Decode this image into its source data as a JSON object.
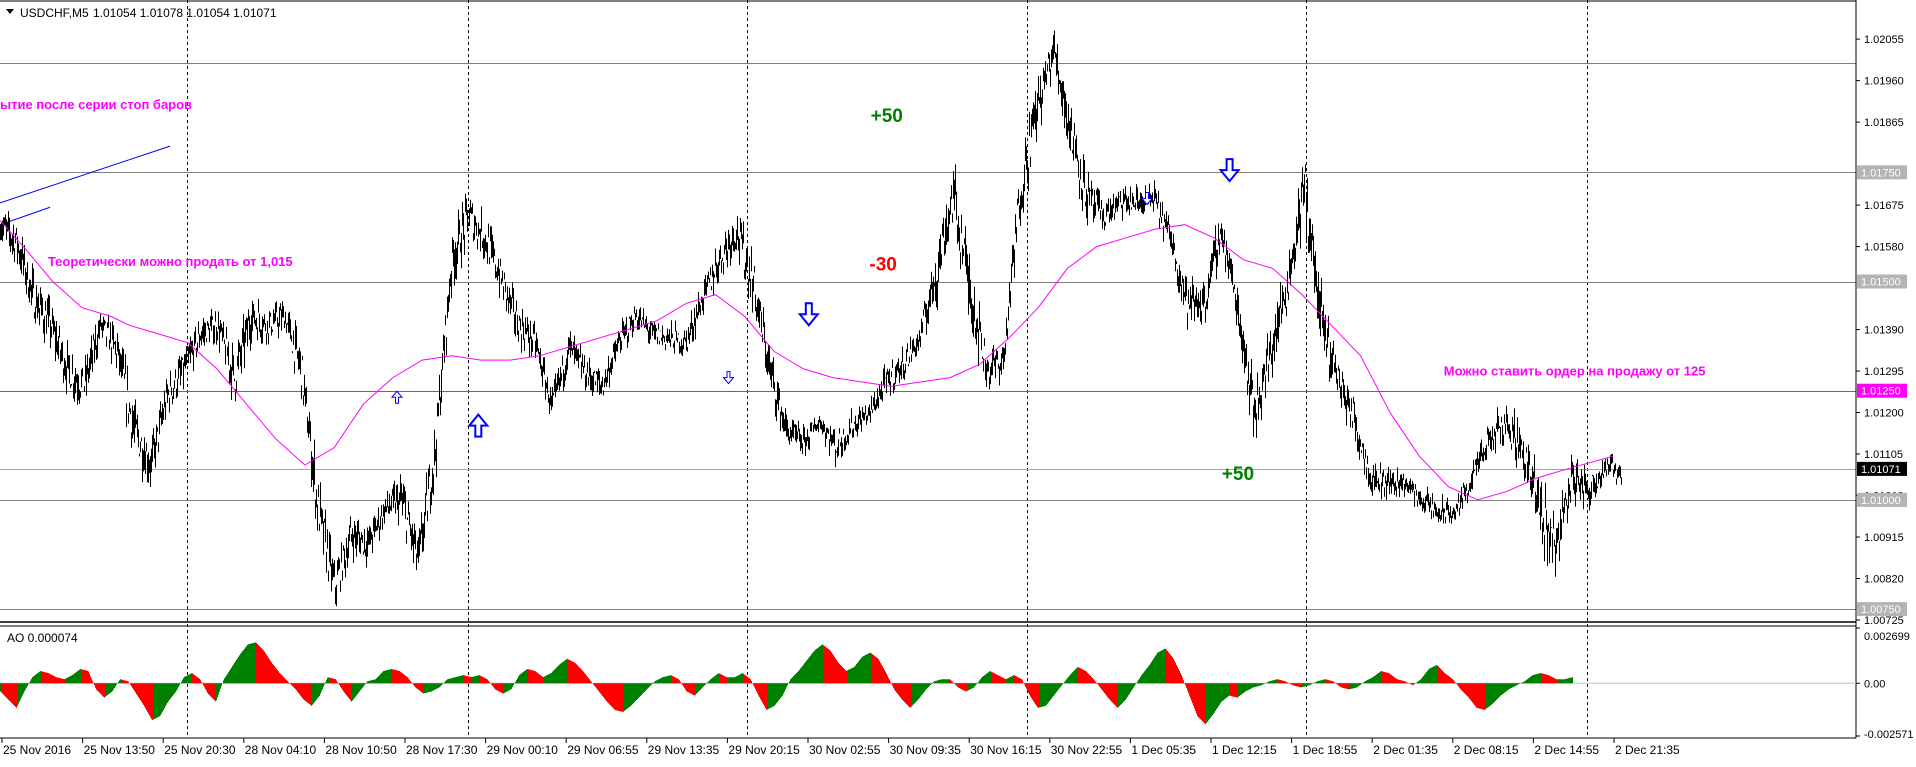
{
  "header": {
    "symbol": "USDCHF,M5",
    "ohlc": "1.01054 1.01078 1.01054 1.01071"
  },
  "chart_data": [
    {
      "type": "line",
      "title": "USDCHF,M5",
      "ylim": [
        1.00725,
        1.0214
      ],
      "grid": true,
      "yticks": [
        "1.02055",
        "1.01960",
        "1.01865",
        "1.01750",
        "1.01675",
        "1.01580",
        "1.01500",
        "1.01390",
        "1.01295",
        "1.01250",
        "1.01200",
        "1.01105",
        "1.01071",
        "1.01010",
        "1.01000",
        "1.00915",
        "1.00820",
        "1.00750",
        "1.00725"
      ],
      "price_line_ticks": [
        "1.01960",
        "1.01865",
        "1.01675",
        "1.01580",
        "1.01390",
        "1.01295",
        "1.01200",
        "1.01105",
        "1.01010",
        "1.00915",
        "1.00820",
        "1.00725"
      ],
      "boxed_levels": [
        "1.02000",
        "1.01750",
        "1.01500",
        "1.01250",
        "1.01000",
        "1.00750"
      ],
      "current_price": "1.01071",
      "xticks": [
        "25 Nov 2016",
        "25 Nov 13:50",
        "25 Nov 20:30",
        "28 Nov 04:10",
        "28 Nov 10:50",
        "28 Nov 17:30",
        "29 Nov 00:10",
        "29 Nov 06:55",
        "29 Nov 13:35",
        "29 Nov 20:15",
        "30 Nov 02:55",
        "30 Nov 09:35",
        "30 Nov 16:15",
        "30 Nov 22:55",
        "1 Dec 05:35",
        "1 Dec 12:15",
        "1 Dec 18:55",
        "2 Dec 01:35",
        "2 Dec 08:15",
        "2 Dec 14:55",
        "2 Dec 21:35"
      ],
      "series": [
        {
          "values": [
            1.0163,
            1.0159,
            1.0146,
            1.014,
            1.013,
            1.0126,
            1.014,
            1.0134,
            1.0116,
            1.0108,
            1.0124,
            1.013,
            1.0138,
            1.014,
            1.0128,
            1.0142,
            1.014,
            1.0142,
            1.013,
            1.0098,
            1.008,
            1.0092,
            1.009,
            1.0098,
            1.01,
            1.0086,
            1.0111,
            1.0155,
            1.0165,
            1.016,
            1.015,
            1.014,
            1.0136,
            1.0121,
            1.0135,
            1.0129,
            1.0126,
            1.0136,
            1.0142,
            1.0138,
            1.0137,
            1.0136,
            1.0146,
            1.0155,
            1.0162,
            1.015,
            1.013,
            1.0116,
            1.0113,
            1.0118,
            1.0112,
            1.0117,
            1.012,
            1.0127,
            1.0131,
            1.0137,
            1.0153,
            1.017,
            1.0148,
            1.013,
            1.0132,
            1.0171,
            1.019,
            1.0203,
            1.0185,
            1.0169,
            1.0165,
            1.0168,
            1.0168,
            1.0169,
            1.016,
            1.0145,
            1.0145,
            1.0162,
            1.0144,
            1.012,
            1.0134,
            1.015,
            1.0172,
            1.014,
            1.0128,
            1.0118,
            1.0105,
            1.0104,
            1.0104,
            1.01,
            1.0097,
            1.0097,
            1.0105,
            1.0113,
            1.0118,
            1.0112,
            1.0098,
            1.009,
            1.0105,
            1.0102,
            1.0108,
            1.0106
          ],
          "band": [
            0.0006,
            0.0008,
            0.0009,
            0.0008,
            0.0008,
            0.0008,
            0.0006,
            0.0008,
            0.001,
            0.0008,
            0.0007,
            0.0007,
            0.0006,
            0.0006,
            0.001,
            0.0008,
            0.0006,
            0.0006,
            0.0009,
            0.0012,
            0.0008,
            0.0007,
            0.0007,
            0.0006,
            0.0008,
            0.001,
            0.001,
            0.001,
            0.0008,
            0.0008,
            0.0007,
            0.0007,
            0.0006,
            0.0006,
            0.0007,
            0.0006,
            0.0006,
            0.0005,
            0.0005,
            0.0005,
            0.0005,
            0.0005,
            0.0006,
            0.0007,
            0.0008,
            0.001,
            0.0008,
            0.0006,
            0.0005,
            0.0004,
            0.0006,
            0.0005,
            0.0004,
            0.0006,
            0.0005,
            0.0005,
            0.0012,
            0.001,
            0.0012,
            0.0007,
            0.0006,
            0.0012,
            0.001,
            0.0008,
            0.0012,
            0.0008,
            0.0006,
            0.0005,
            0.0005,
            0.0005,
            0.0006,
            0.0008,
            0.0008,
            0.0008,
            0.0009,
            0.001,
            0.0009,
            0.001,
            0.0012,
            0.0012,
            0.0008,
            0.0008,
            0.0006,
            0.0005,
            0.0004,
            0.0004,
            0.0005,
            0.0004,
            0.0005,
            0.0006,
            0.0006,
            0.0008,
            0.0012,
            0.001,
            0.0008,
            0.0006,
            0.0005,
            0.0004
          ]
        },
        {
          "values": [
            1.0164,
            1.0158,
            1.015,
            1.0144,
            1.0142,
            1.014,
            1.0138,
            1.0136,
            1.013,
            1.0122,
            1.0114,
            1.0108,
            1.0112,
            1.0122,
            1.0128,
            1.0132,
            1.0133,
            1.0132,
            1.0132,
            1.0133,
            1.0135,
            1.0137,
            1.0139,
            1.0141,
            1.0145,
            1.0147,
            1.0142,
            1.0134,
            1.013,
            1.0128,
            1.0127,
            1.0126,
            1.0127,
            1.0128,
            1.0131,
            1.0137,
            1.0144,
            1.0153,
            1.0158,
            1.016,
            1.0162,
            1.0163,
            1.016,
            1.0155,
            1.0153,
            1.0147,
            1.014,
            1.0133,
            1.012,
            1.011,
            1.0103,
            1.01,
            1.0102,
            1.0105,
            1.0107,
            1.011
          ],
          "x_frac": [
            0.0,
            0.0126,
            0.0284,
            0.0442,
            0.06,
            0.0695,
            0.0853,
            0.1011,
            0.1169,
            0.1327,
            0.1485,
            0.1643,
            0.1801,
            0.1959,
            0.2117,
            0.2275,
            0.2433,
            0.2591,
            0.2749,
            0.2907,
            0.3065,
            0.3223,
            0.3381,
            0.3539,
            0.3697,
            0.3855,
            0.4013,
            0.4171,
            0.4329,
            0.4487,
            0.4645,
            0.4803,
            0.4961,
            0.5119,
            0.5277,
            0.5435,
            0.5593,
            0.5751,
            0.5909,
            0.6067,
            0.6225,
            0.6383,
            0.6541,
            0.6699,
            0.6857,
            0.7015,
            0.7173,
            0.7331,
            0.7489,
            0.7647,
            0.7805,
            0.7963,
            0.8121,
            0.8279,
            0.8437,
            0.869
          ]
        }
      ],
      "trendline": [
        [
          0.0,
          1.0168
        ],
        [
          0.0916,
          1.0181
        ]
      ],
      "annotations": [
        {
          "text": "ытие после серии стоп баров",
          "x": 0.0,
          "y": 1.01895,
          "color": "#ff00ff"
        },
        {
          "text": "Теоретически можно продать от 1,015",
          "x": 0.0258,
          "y": 1.01535,
          "color": "#ff00ff"
        },
        {
          "text": "Можно ставить ордер на продажу от 125",
          "x": 0.7779,
          "y": 1.01285,
          "color": "#ff00ff"
        },
        {
          "text": "+50",
          "x": 0.4691,
          "y": 1.01865,
          "color": "#007f00",
          "size": "big"
        },
        {
          "text": "-30",
          "x": 0.4684,
          "y": 1.01525,
          "color": "#ff0000",
          "size": "big"
        },
        {
          "text": "+50",
          "x": 0.6583,
          "y": 1.01045,
          "color": "#007f00",
          "size": "big"
        }
      ],
      "arrows": [
        {
          "dir": "up",
          "x": 0.2577,
          "y": 1.0117,
          "size": "big"
        },
        {
          "dir": "up",
          "x": 0.2139,
          "y": 1.01235,
          "size": "small"
        },
        {
          "dir": "down",
          "x": 0.4358,
          "y": 1.01425,
          "size": "big"
        },
        {
          "dir": "down",
          "x": 0.3925,
          "y": 1.0128,
          "size": "small"
        },
        {
          "dir": "down",
          "x": 0.6625,
          "y": 1.01755,
          "size": "big"
        },
        {
          "dir": "down",
          "x": 0.618,
          "y": 1.0169,
          "size": "small"
        }
      ],
      "x_grid_frac": [
        0.1008,
        0.2519,
        0.4027,
        0.5535,
        0.7037,
        0.8549
      ]
    },
    {
      "type": "bar",
      "title": "AO 0.000074",
      "ylim": [
        -0.002571,
        0.002699
      ],
      "yticks": [
        "0.002699",
        "0.00",
        "-0.002571"
      ],
      "up_color": "#008000",
      "down_color": "#ff0000",
      "values": [
        -0.0004,
        -0.0008,
        -0.0012,
        -0.0004,
        0.0003,
        0.0006,
        0.0005,
        0.0003,
        0.0002,
        0.0004,
        0.0007,
        0.0006,
        -0.0003,
        -0.0007,
        -0.0004,
        0.0002,
        0.0001,
        -0.0005,
        -0.0011,
        -0.0018,
        -0.0016,
        -0.0009,
        -0.0004,
        0.0003,
        0.0005,
        0.0002,
        -0.0005,
        -0.0009,
        0.0002,
        0.0008,
        0.0014,
        0.0019,
        0.002,
        0.0016,
        0.001,
        0.0005,
        0.0001,
        -0.0003,
        -0.0008,
        -0.0011,
        -0.0006,
        0.0003,
        0.0002,
        -0.0004,
        -0.0009,
        -0.0004,
        0.0001,
        0.0002,
        0.0006,
        0.0007,
        0.0006,
        0.0003,
        -0.0002,
        -0.0005,
        -0.0004,
        -0.0002,
        0.0002,
        0.0003,
        0.0004,
        0.0003,
        0.0004,
        0.0002,
        -0.0003,
        -0.0005,
        -0.0003,
        0.0004,
        0.0007,
        0.0006,
        0.0003,
        0.0005,
        0.0009,
        0.0012,
        0.001,
        0.0006,
        0.0001,
        -0.0004,
        -0.0009,
        -0.0013,
        -0.0014,
        -0.0011,
        -0.0007,
        -0.0003,
        0.0001,
        0.0003,
        0.0004,
        0.0002,
        -0.0004,
        -0.0006,
        -0.0002,
        0.0002,
        0.0005,
        0.0003,
        0.0003,
        0.0005,
        0.0002,
        -0.0006,
        -0.0013,
        -0.0011,
        -0.0006,
        0.0002,
        0.0006,
        0.0011,
        0.0016,
        0.0019,
        0.0016,
        0.001,
        0.0006,
        0.0008,
        0.0013,
        0.0015,
        0.0012,
        0.0005,
        -0.0003,
        -0.0008,
        -0.0012,
        -0.0008,
        -0.0003,
        0.0001,
        0.0002,
        0.0002,
        -0.0002,
        -0.0004,
        -0.0002,
        0.0003,
        0.0006,
        0.0004,
        0.0002,
        0.0004,
        0.0002,
        -0.0006,
        -0.0012,
        -0.0011,
        -0.0006,
        -0.0001,
        0.0004,
        0.0008,
        0.0006,
        0.0002,
        -0.0003,
        -0.0008,
        -0.0012,
        -0.0008,
        -0.0002,
        0.0004,
        0.0009,
        0.0015,
        0.0017,
        0.0012,
        0.0004,
        -0.0006,
        -0.0016,
        -0.002,
        -0.0015,
        -0.0009,
        -0.0006,
        -0.0007,
        -0.0004,
        -0.0002,
        -0.0001,
        0.0001,
        0.0002,
        0.0001,
        -0.0001,
        -0.0002,
        -0.0001,
        0.0001,
        0.0002,
        0.0001,
        -0.0002,
        -0.0003,
        -0.0002,
        0.0001,
        0.0003,
        0.0006,
        0.0005,
        0.0002,
        0.0001,
        -0.0001,
        0.0002,
        0.0007,
        0.0009,
        0.0005,
        0.0002,
        -0.0003,
        -0.0007,
        -0.0012,
        -0.0013,
        -0.001,
        -0.0006,
        -0.0003,
        -0.0001,
        0.0001,
        0.0004,
        0.0005,
        0.0004,
        0.0002,
        0.0002,
        0.0003
      ],
      "x_end_frac": 0.847
    }
  ]
}
